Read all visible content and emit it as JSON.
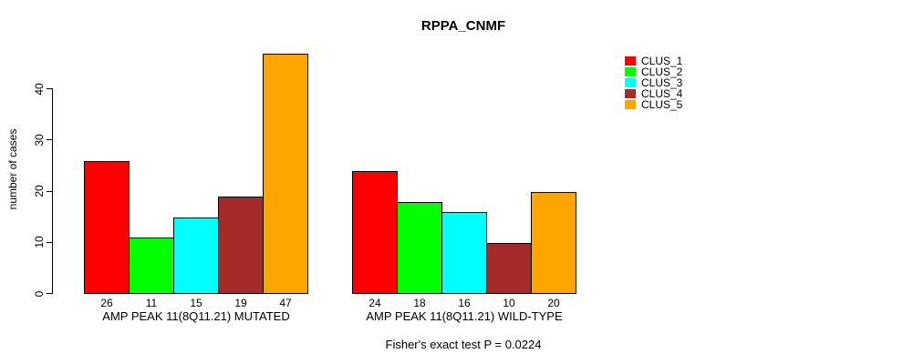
{
  "chart_data": {
    "type": "bar",
    "title": "RPPA_CNMF",
    "xlabel": "",
    "ylabel": "number of cases",
    "ylim": [
      0,
      47
    ],
    "yticks": [
      0,
      10,
      20,
      30,
      40
    ],
    "grid": false,
    "legend_position": "top-right",
    "bar_outline_color": "#000000",
    "categories": [
      "AMP PEAK 11(8Q11.21) MUTATED",
      "AMP PEAK 11(8Q11.21) WILD-TYPE"
    ],
    "series": [
      {
        "name": "CLUS_1",
        "color": "#FF0000",
        "values": [
          26,
          24
        ]
      },
      {
        "name": "CLUS_2",
        "color": "#00FF00",
        "values": [
          11,
          18
        ]
      },
      {
        "name": "CLUS_3",
        "color": "#00FFFF",
        "values": [
          15,
          16
        ]
      },
      {
        "name": "CLUS_4",
        "color": "#A52A2A",
        "values": [
          19,
          10
        ]
      },
      {
        "name": "CLUS_5",
        "color": "#FFA500",
        "values": [
          47,
          20
        ]
      }
    ],
    "bar_value_labels": {
      "group_1": [
        26,
        11,
        15,
        19,
        47
      ],
      "group_2": [
        24,
        18,
        16,
        10,
        20
      ]
    },
    "annotation": "Fisher's exact test P = 0.0224"
  }
}
